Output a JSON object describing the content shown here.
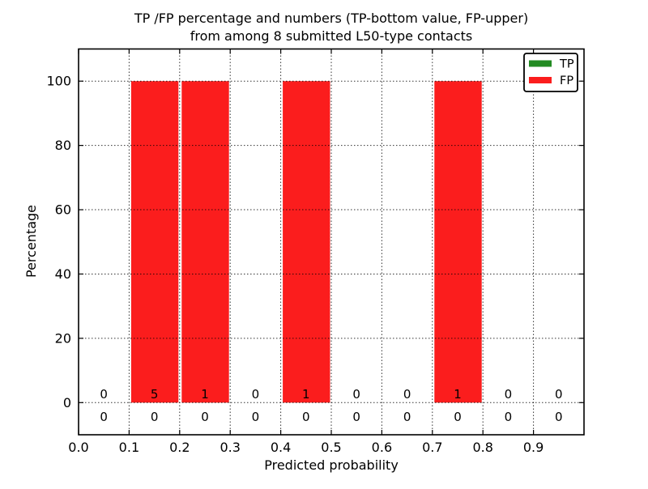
{
  "chart_data": {
    "type": "bar",
    "stacked": true,
    "title_lines": [
      "TP /FP percentage and numbers (TP-bottom value, FP-upper)",
      "from among 8 submitted L50-type contacts"
    ],
    "xlabel": "Predicted probability",
    "ylabel": "Percentage",
    "xlim": [
      0.0,
      1.0
    ],
    "ylim": [
      -10,
      110
    ],
    "x_tick_values": [
      0.0,
      0.1,
      0.2,
      0.3,
      0.4,
      0.5,
      0.6,
      0.7,
      0.8,
      0.9
    ],
    "x_tick_labels": [
      "0.0",
      "0.1",
      "0.2",
      "0.3",
      "0.4",
      "0.5",
      "0.6",
      "0.7",
      "0.8",
      "0.9"
    ],
    "y_tick_values": [
      0,
      20,
      40,
      60,
      80,
      100
    ],
    "y_tick_labels": [
      "0",
      "20",
      "40",
      "60",
      "80",
      "100"
    ],
    "bin_left_edges": [
      0.0,
      0.1,
      0.2,
      0.3,
      0.4,
      0.5,
      0.6,
      0.7,
      0.8,
      0.9
    ],
    "bin_width": 0.1,
    "series": [
      {
        "name": "TP",
        "color": "#228B22",
        "percentages": [
          0,
          0,
          0,
          0,
          0,
          0,
          0,
          0,
          0,
          0
        ],
        "counts": [
          0,
          0,
          0,
          0,
          0,
          0,
          0,
          0,
          0,
          0
        ]
      },
      {
        "name": "FP",
        "color": "#fb1d1d",
        "percentages": [
          0,
          100,
          100,
          0,
          100,
          0,
          0,
          100,
          0,
          0
        ],
        "counts": [
          0,
          5,
          1,
          0,
          1,
          0,
          0,
          1,
          0,
          0
        ]
      }
    ],
    "legend": {
      "position": "upper right",
      "entries": [
        {
          "label": "TP",
          "color": "#228B22"
        },
        {
          "label": "FP",
          "color": "#fb1d1d"
        }
      ]
    },
    "grid": {
      "style": "dotted",
      "color": "#000000",
      "horizontal_values": [
        0,
        20,
        40,
        60,
        80,
        100
      ],
      "vertical_values": [
        0.1,
        0.2,
        0.3,
        0.4,
        0.5,
        0.6,
        0.7,
        0.8,
        0.9
      ]
    }
  }
}
